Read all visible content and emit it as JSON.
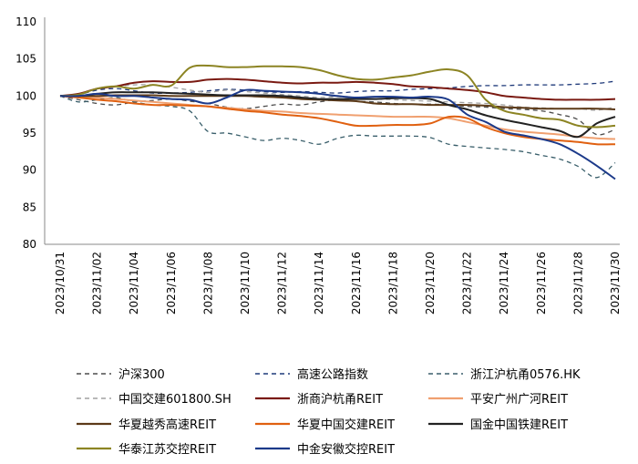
{
  "chart_data": {
    "type": "line",
    "title": "",
    "xlabel": "",
    "ylabel": "",
    "ylim": [
      80,
      110
    ],
    "yticks": [
      80,
      85,
      90,
      95,
      100,
      105,
      110
    ],
    "grid": false,
    "legend_position": "bottom",
    "x_tick_labels": [
      "2023/10/31",
      "2023/11/02",
      "2023/11/04",
      "2023/11/06",
      "2023/11/08",
      "2023/11/10",
      "2023/11/12",
      "2023/11/14",
      "2023/11/16",
      "2023/11/18",
      "2023/11/20",
      "2023/11/22",
      "2023/11/24",
      "2023/11/26",
      "2023/11/28",
      "2023/11/30"
    ],
    "x_days": [
      0,
      1,
      2,
      3,
      4,
      5,
      6,
      7,
      8,
      9,
      10,
      11,
      12,
      13,
      14,
      15,
      16,
      17,
      18,
      19,
      20,
      21,
      22,
      23,
      24,
      25,
      26,
      27,
      28,
      29,
      30
    ],
    "series": [
      {
        "name": "沪深300",
        "color": "#4d4d4d",
        "dash": "5,4",
        "values": [
          100,
          99.5,
          99.0,
          98.8,
          99.2,
          99.4,
          99.6,
          99.3,
          99.0,
          98.5,
          98.3,
          98.6,
          98.9,
          98.8,
          99.2,
          99.5,
          99.3,
          99.2,
          99.0,
          98.9,
          98.9,
          98.8,
          98.6,
          98.5,
          98.3,
          98.2,
          98.0,
          97.5,
          96.8,
          94.8,
          95.5
        ]
      },
      {
        "name": "高速公路指数",
        "color": "#1f3a7a",
        "dash": "5,4",
        "values": [
          100,
          100.2,
          100.8,
          101.0,
          100.7,
          100.4,
          100.4,
          100.5,
          100.7,
          100.9,
          100.8,
          100.6,
          100.5,
          100.6,
          100.5,
          100.4,
          100.6,
          100.7,
          100.7,
          100.9,
          101.0,
          101.1,
          101.3,
          101.4,
          101.4,
          101.5,
          101.5,
          101.5,
          101.6,
          101.7,
          102.0
        ]
      },
      {
        "name": "浙江沪杭甬0576.HK",
        "color": "#3a5f6b",
        "dash": "5,4",
        "values": [
          100,
          99.2,
          99.5,
          99.8,
          99.2,
          98.8,
          98.6,
          98.0,
          95.2,
          95.0,
          94.5,
          94.0,
          94.3,
          94.0,
          93.5,
          94.3,
          94.7,
          94.6,
          94.6,
          94.6,
          94.4,
          93.5,
          93.2,
          93.0,
          92.8,
          92.5,
          92.0,
          91.5,
          90.5,
          89.0,
          91.0
        ]
      },
      {
        "name": "中国交建601800.SH",
        "color": "#a0a0a0",
        "dash": "5,4",
        "values": [
          100,
          100.2,
          101.0,
          101.3,
          101.5,
          101.5,
          101.2,
          100.8,
          100.5,
          100.8,
          100.6,
          100.4,
          100.2,
          100.0,
          99.8,
          99.9,
          99.7,
          99.6,
          99.5,
          99.4,
          99.3,
          99.2,
          99.1,
          99.0,
          98.8,
          98.5,
          98.4,
          98.3,
          98.3,
          98.1,
          98.5
        ]
      },
      {
        "name": "浙商沪杭甬REIT",
        "color": "#7a1a12",
        "dash": "",
        "values": [
          100,
          100.3,
          101.0,
          101.3,
          101.8,
          102.0,
          101.9,
          101.9,
          102.2,
          102.3,
          102.2,
          102.0,
          101.8,
          101.7,
          101.8,
          101.8,
          101.9,
          101.8,
          101.6,
          101.3,
          101.2,
          101.0,
          100.8,
          100.5,
          100.0,
          99.8,
          99.6,
          99.5,
          99.5,
          99.5,
          99.6
        ]
      },
      {
        "name": "平安广州广河REIT",
        "color": "#f0a070",
        "dash": "",
        "values": [
          100,
          99.9,
          99.8,
          99.6,
          99.4,
          99.2,
          99.0,
          98.8,
          98.6,
          98.4,
          98.2,
          98.0,
          97.9,
          97.7,
          97.6,
          97.5,
          97.4,
          97.3,
          97.2,
          97.2,
          97.2,
          97.0,
          96.5,
          96.0,
          95.5,
          95.2,
          95.0,
          94.8,
          94.5,
          94.3,
          94.2
        ]
      },
      {
        "name": "华夏越秀高速REIT",
        "color": "#5c3a18",
        "dash": "",
        "values": [
          100,
          100.0,
          100.0,
          100.1,
          100.1,
          100.1,
          100.0,
          100.0,
          100.0,
          100.0,
          100.0,
          99.9,
          99.8,
          99.6,
          99.5,
          99.4,
          99.3,
          99.0,
          98.9,
          98.9,
          98.8,
          98.8,
          98.8,
          98.7,
          98.5,
          98.4,
          98.3,
          98.3,
          98.3,
          98.3,
          98.2
        ]
      },
      {
        "name": "华夏中国交建REIT",
        "color": "#e06010",
        "dash": "",
        "values": [
          100,
          99.8,
          99.5,
          99.3,
          99.0,
          98.8,
          98.8,
          98.7,
          98.6,
          98.3,
          98.0,
          97.8,
          97.5,
          97.3,
          97.0,
          96.5,
          96.0,
          96.0,
          96.1,
          96.1,
          96.3,
          97.2,
          97.0,
          95.8,
          95.0,
          94.5,
          94.2,
          94.0,
          93.8,
          93.5,
          93.5
        ]
      },
      {
        "name": "国金中国铁建REIT",
        "color": "#222222",
        "dash": "",
        "values": [
          100,
          100.0,
          100.3,
          100.5,
          100.5,
          100.5,
          100.4,
          100.3,
          100.2,
          100.1,
          100.1,
          100.1,
          100.0,
          99.8,
          99.6,
          99.6,
          99.6,
          99.6,
          99.7,
          99.7,
          99.6,
          98.8,
          98.2,
          97.4,
          96.8,
          96.3,
          95.8,
          95.3,
          94.5,
          96.3,
          97.2
        ]
      },
      {
        "name": "华泰江苏交控REIT",
        "color": "#8c8423",
        "dash": "",
        "values": [
          100,
          100.2,
          101.0,
          101.3,
          101.0,
          101.5,
          101.4,
          103.8,
          104.1,
          103.9,
          103.9,
          104.0,
          104.0,
          103.9,
          103.5,
          102.8,
          102.3,
          102.2,
          102.5,
          102.8,
          103.3,
          103.6,
          102.8,
          99.5,
          98.0,
          97.5,
          97.0,
          96.8,
          96.0,
          95.8,
          96.0
        ]
      },
      {
        "name": "中金安徽交控REIT",
        "color": "#1c3a8a",
        "dash": "",
        "values": [
          100,
          100.0,
          100.3,
          100.0,
          100.0,
          99.8,
          99.6,
          99.5,
          99.0,
          99.8,
          100.8,
          100.7,
          100.6,
          100.5,
          100.3,
          100.0,
          99.8,
          99.9,
          99.9,
          99.8,
          99.9,
          99.5,
          97.5,
          96.5,
          95.2,
          94.7,
          94.2,
          93.5,
          92.2,
          90.6,
          88.8
        ]
      }
    ]
  }
}
